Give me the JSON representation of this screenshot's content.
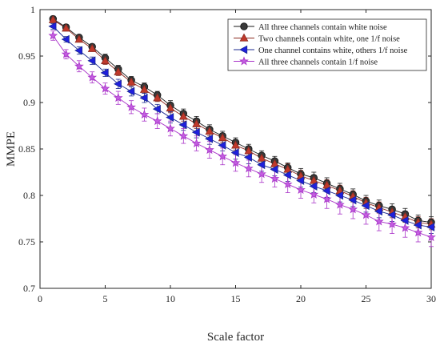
{
  "chart_data": {
    "type": "line",
    "title": "",
    "xlabel": "Scale factor",
    "ylabel": "MMPE",
    "xlim": [
      0,
      30
    ],
    "ylim": [
      0.7,
      1
    ],
    "xticks": [
      0,
      5,
      10,
      15,
      20,
      25,
      30
    ],
    "yticks": [
      0.7,
      0.75,
      0.8,
      0.85,
      0.9,
      0.95,
      1
    ],
    "xtick_labels": [
      "0",
      "5",
      "10",
      "15",
      "20",
      "25",
      "30"
    ],
    "ytick_labels": [
      "0.7",
      "0.75",
      "0.8",
      "0.85",
      "0.9",
      "0.95",
      "1"
    ],
    "grid": false,
    "legend_position": "top-right",
    "x": [
      1,
      2,
      3,
      4,
      5,
      6,
      7,
      8,
      9,
      10,
      11,
      12,
      13,
      14,
      15,
      16,
      17,
      18,
      19,
      20,
      21,
      22,
      23,
      24,
      25,
      26,
      27,
      28,
      29,
      30
    ],
    "series": [
      {
        "name": "All three channels contain white noise",
        "color": "#1a1a1a",
        "fill": "#3a3a3a",
        "marker": "circle",
        "values": [
          0.99,
          0.981,
          0.97,
          0.96,
          0.948,
          0.936,
          0.924,
          0.917,
          0.908,
          0.897,
          0.888,
          0.88,
          0.871,
          0.864,
          0.857,
          0.85,
          0.843,
          0.837,
          0.83,
          0.823,
          0.819,
          0.813,
          0.807,
          0.801,
          0.794,
          0.789,
          0.785,
          0.78,
          0.773,
          0.771
        ],
        "errors": [
          0.003,
          0.003,
          0.003,
          0.003,
          0.004,
          0.004,
          0.004,
          0.004,
          0.004,
          0.005,
          0.005,
          0.005,
          0.005,
          0.005,
          0.005,
          0.005,
          0.005,
          0.005,
          0.005,
          0.006,
          0.006,
          0.006,
          0.006,
          0.006,
          0.006,
          0.006,
          0.006,
          0.006,
          0.006,
          0.006
        ]
      },
      {
        "name": "Two channels contain white, one 1/f noise",
        "color": "#8c2a20",
        "fill": "#c0392b",
        "marker": "triangle-up",
        "values": [
          0.989,
          0.98,
          0.968,
          0.958,
          0.945,
          0.933,
          0.922,
          0.914,
          0.905,
          0.894,
          0.885,
          0.877,
          0.869,
          0.862,
          0.854,
          0.848,
          0.84,
          0.834,
          0.828,
          0.821,
          0.816,
          0.811,
          0.805,
          0.799,
          0.792,
          0.787,
          0.782,
          0.777,
          0.771,
          0.769
        ],
        "errors": [
          0.003,
          0.003,
          0.003,
          0.003,
          0.004,
          0.004,
          0.004,
          0.004,
          0.004,
          0.005,
          0.005,
          0.005,
          0.005,
          0.005,
          0.005,
          0.005,
          0.005,
          0.005,
          0.006,
          0.006,
          0.006,
          0.006,
          0.006,
          0.006,
          0.006,
          0.006,
          0.006,
          0.006,
          0.006,
          0.006
        ]
      },
      {
        "name": "One channel contains white, others 1/f noise",
        "color": "#1b2a8f",
        "fill": "#1f1fdd",
        "marker": "triangle-left",
        "values": [
          0.982,
          0.968,
          0.956,
          0.945,
          0.932,
          0.92,
          0.912,
          0.905,
          0.893,
          0.884,
          0.876,
          0.868,
          0.861,
          0.854,
          0.846,
          0.841,
          0.833,
          0.828,
          0.822,
          0.816,
          0.81,
          0.805,
          0.8,
          0.795,
          0.789,
          0.783,
          0.779,
          0.773,
          0.768,
          0.766
        ],
        "errors": [
          0.003,
          0.003,
          0.004,
          0.004,
          0.004,
          0.005,
          0.005,
          0.005,
          0.005,
          0.006,
          0.006,
          0.006,
          0.006,
          0.006,
          0.007,
          0.007,
          0.007,
          0.007,
          0.007,
          0.007,
          0.007,
          0.007,
          0.007,
          0.007,
          0.007,
          0.007,
          0.007,
          0.007,
          0.007,
          0.007
        ]
      },
      {
        "name": "All three channels contain 1/f noise",
        "color": "#a832c8",
        "fill": "#c35ee0",
        "marker": "star",
        "values": [
          0.972,
          0.952,
          0.939,
          0.927,
          0.915,
          0.905,
          0.895,
          0.887,
          0.88,
          0.872,
          0.864,
          0.856,
          0.849,
          0.842,
          0.835,
          0.829,
          0.823,
          0.818,
          0.812,
          0.806,
          0.801,
          0.796,
          0.79,
          0.785,
          0.779,
          0.772,
          0.769,
          0.765,
          0.76,
          0.755
        ],
        "errors": [
          0.005,
          0.005,
          0.006,
          0.006,
          0.006,
          0.007,
          0.007,
          0.007,
          0.008,
          0.008,
          0.008,
          0.008,
          0.009,
          0.009,
          0.009,
          0.009,
          0.009,
          0.009,
          0.009,
          0.009,
          0.009,
          0.01,
          0.01,
          0.01,
          0.01,
          0.01,
          0.01,
          0.01,
          0.01,
          0.01
        ]
      }
    ]
  }
}
